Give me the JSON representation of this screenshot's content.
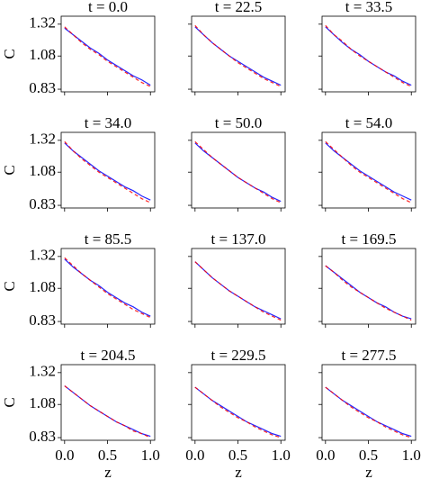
{
  "chart_data": [
    {
      "type": "line",
      "title": "t = 0.0",
      "ylabel": "C",
      "x": [
        0,
        0.1,
        0.2,
        0.3,
        0.4,
        0.5,
        0.6,
        0.7,
        0.8,
        0.9,
        1.0
      ],
      "xlim": [
        -0.04,
        1.05
      ],
      "ylim": [
        0.81,
        1.38
      ],
      "xticks": [
        {
          "value": 0,
          "label": "0.0"
        },
        0.5,
        {
          "value": 1,
          "label": "1.0"
        }
      ],
      "yticks": [
        0.83,
        1.08,
        1.32
      ],
      "series": [
        {
          "color": "#0000ff",
          "dash": false,
          "values": [
            1.29,
            1.24,
            1.19,
            1.14,
            1.1,
            1.05,
            1.01,
            0.97,
            0.93,
            0.9,
            0.86
          ]
        },
        {
          "color": "#ff0000",
          "dash": true,
          "values": [
            1.3,
            1.24,
            1.18,
            1.13,
            1.09,
            1.04,
            1.0,
            0.96,
            0.92,
            0.88,
            0.85
          ]
        }
      ]
    },
    {
      "type": "line",
      "title": "t = 22.5",
      "x": [
        0,
        0.1,
        0.2,
        0.3,
        0.4,
        0.5,
        0.6,
        0.7,
        0.8,
        0.9,
        1.0
      ],
      "xlim": [
        -0.04,
        1.05
      ],
      "ylim": [
        0.81,
        1.38
      ],
      "xticks": [
        {
          "value": 0,
          "label": "0.0"
        },
        0.5,
        {
          "value": 1,
          "label": "1.0"
        }
      ],
      "yticks": [
        0.83,
        1.08,
        1.32
      ],
      "series": [
        {
          "color": "#0000ff",
          "dash": false,
          "values": [
            1.3,
            1.24,
            1.18,
            1.13,
            1.08,
            1.04,
            1.0,
            0.96,
            0.92,
            0.89,
            0.86
          ]
        },
        {
          "color": "#ff0000",
          "dash": true,
          "values": [
            1.31,
            1.24,
            1.18,
            1.13,
            1.08,
            1.03,
            0.99,
            0.95,
            0.91,
            0.88,
            0.85
          ]
        }
      ]
    },
    {
      "type": "line",
      "title": "t = 33.5",
      "x": [
        0,
        0.1,
        0.2,
        0.3,
        0.4,
        0.5,
        0.6,
        0.7,
        0.8,
        0.9,
        1.0
      ],
      "xlim": [
        -0.04,
        1.05
      ],
      "ylim": [
        0.81,
        1.38
      ],
      "xticks": [
        {
          "value": 0,
          "label": "0.0"
        },
        0.5,
        {
          "value": 1,
          "label": "1.0"
        }
      ],
      "yticks": [
        0.83,
        1.08,
        1.32
      ],
      "series": [
        {
          "color": "#0000ff",
          "dash": false,
          "values": [
            1.3,
            1.24,
            1.18,
            1.13,
            1.09,
            1.04,
            1.0,
            0.96,
            0.93,
            0.89,
            0.86
          ]
        },
        {
          "color": "#ff0000",
          "dash": true,
          "values": [
            1.31,
            1.24,
            1.19,
            1.13,
            1.08,
            1.04,
            1.0,
            0.96,
            0.92,
            0.88,
            0.85
          ]
        }
      ]
    },
    {
      "type": "line",
      "title": "t = 34.0",
      "ylabel": "C",
      "x": [
        0,
        0.1,
        0.2,
        0.3,
        0.4,
        0.5,
        0.6,
        0.7,
        0.8,
        0.9,
        1.0
      ],
      "xlim": [
        -0.04,
        1.05
      ],
      "ylim": [
        0.81,
        1.38
      ],
      "xticks": [
        {
          "value": 0,
          "label": "0.0"
        },
        0.5,
        {
          "value": 1,
          "label": "1.0"
        }
      ],
      "yticks": [
        0.83,
        1.08,
        1.32
      ],
      "series": [
        {
          "color": "#0000ff",
          "dash": false,
          "values": [
            1.3,
            1.24,
            1.19,
            1.14,
            1.09,
            1.05,
            1.01,
            0.97,
            0.94,
            0.9,
            0.87
          ]
        },
        {
          "color": "#ff0000",
          "dash": true,
          "values": [
            1.31,
            1.24,
            1.18,
            1.13,
            1.08,
            1.04,
            1.0,
            0.96,
            0.92,
            0.88,
            0.85
          ]
        }
      ]
    },
    {
      "type": "line",
      "title": "t = 50.0",
      "x": [
        0,
        0.1,
        0.2,
        0.3,
        0.4,
        0.5,
        0.6,
        0.7,
        0.8,
        0.9,
        1.0
      ],
      "xlim": [
        -0.04,
        1.05
      ],
      "ylim": [
        0.81,
        1.38
      ],
      "xticks": [
        {
          "value": 0,
          "label": "0.0"
        },
        0.5,
        {
          "value": 1,
          "label": "1.0"
        }
      ],
      "yticks": [
        0.83,
        1.08,
        1.32
      ],
      "series": [
        {
          "color": "#0000ff",
          "dash": false,
          "values": [
            1.3,
            1.24,
            1.19,
            1.14,
            1.09,
            1.04,
            1.0,
            0.96,
            0.93,
            0.89,
            0.86
          ]
        },
        {
          "color": "#ff0000",
          "dash": true,
          "values": [
            1.31,
            1.25,
            1.19,
            1.14,
            1.09,
            1.04,
            1.0,
            0.96,
            0.92,
            0.88,
            0.85
          ]
        }
      ]
    },
    {
      "type": "line",
      "title": "t = 54.0",
      "x": [
        0,
        0.1,
        0.2,
        0.3,
        0.4,
        0.5,
        0.6,
        0.7,
        0.8,
        0.9,
        1.0
      ],
      "xlim": [
        -0.04,
        1.05
      ],
      "ylim": [
        0.81,
        1.38
      ],
      "xticks": [
        {
          "value": 0,
          "label": "0.0"
        },
        0.5,
        {
          "value": 1,
          "label": "1.0"
        }
      ],
      "yticks": [
        0.83,
        1.08,
        1.32
      ],
      "series": [
        {
          "color": "#0000ff",
          "dash": false,
          "values": [
            1.3,
            1.24,
            1.19,
            1.14,
            1.09,
            1.05,
            1.01,
            0.97,
            0.93,
            0.9,
            0.87
          ]
        },
        {
          "color": "#ff0000",
          "dash": true,
          "values": [
            1.31,
            1.25,
            1.19,
            1.13,
            1.08,
            1.04,
            1.0,
            0.96,
            0.92,
            0.88,
            0.85
          ]
        }
      ]
    },
    {
      "type": "line",
      "title": "t = 85.5",
      "ylabel": "C",
      "x": [
        0,
        0.1,
        0.2,
        0.3,
        0.4,
        0.5,
        0.6,
        0.7,
        0.8,
        0.9,
        1.0
      ],
      "xlim": [
        -0.04,
        1.05
      ],
      "ylim": [
        0.81,
        1.38
      ],
      "xticks": [
        {
          "value": 0,
          "label": "0.0"
        },
        0.5,
        {
          "value": 1,
          "label": "1.0"
        }
      ],
      "yticks": [
        0.83,
        1.08,
        1.32
      ],
      "series": [
        {
          "color": "#0000ff",
          "dash": false,
          "values": [
            1.3,
            1.24,
            1.19,
            1.14,
            1.1,
            1.05,
            1.01,
            0.97,
            0.94,
            0.9,
            0.87
          ]
        },
        {
          "color": "#ff0000",
          "dash": true,
          "values": [
            1.31,
            1.25,
            1.19,
            1.14,
            1.09,
            1.04,
            1.0,
            0.96,
            0.92,
            0.89,
            0.86
          ]
        }
      ]
    },
    {
      "type": "line",
      "title": "t = 137.0",
      "x": [
        0,
        0.1,
        0.2,
        0.3,
        0.4,
        0.5,
        0.6,
        0.7,
        0.8,
        0.9,
        1.0
      ],
      "xlim": [
        -0.04,
        1.05
      ],
      "ylim": [
        0.81,
        1.38
      ],
      "xticks": [
        {
          "value": 0,
          "label": "0.0"
        },
        0.5,
        {
          "value": 1,
          "label": "1.0"
        }
      ],
      "yticks": [
        0.83,
        1.08,
        1.32
      ],
      "series": [
        {
          "color": "#0000ff",
          "dash": false,
          "values": [
            1.28,
            1.22,
            1.16,
            1.11,
            1.06,
            1.02,
            0.98,
            0.94,
            0.91,
            0.88,
            0.85
          ]
        },
        {
          "color": "#ff0000",
          "dash": true,
          "values": [
            1.28,
            1.22,
            1.16,
            1.11,
            1.06,
            1.02,
            0.98,
            0.94,
            0.9,
            0.87,
            0.84
          ]
        }
      ]
    },
    {
      "type": "line",
      "title": "t = 169.5",
      "x": [
        0,
        0.1,
        0.2,
        0.3,
        0.4,
        0.5,
        0.6,
        0.7,
        0.8,
        0.9,
        1.0
      ],
      "xlim": [
        -0.04,
        1.05
      ],
      "ylim": [
        0.81,
        1.38
      ],
      "xticks": [
        {
          "value": 0,
          "label": "0.0"
        },
        0.5,
        {
          "value": 1,
          "label": "1.0"
        }
      ],
      "yticks": [
        0.83,
        1.08,
        1.32
      ],
      "series": [
        {
          "color": "#0000ff",
          "dash": false,
          "values": [
            1.25,
            1.2,
            1.15,
            1.1,
            1.05,
            1.01,
            0.97,
            0.94,
            0.9,
            0.87,
            0.85
          ]
        },
        {
          "color": "#ff0000",
          "dash": true,
          "values": [
            1.25,
            1.2,
            1.14,
            1.09,
            1.05,
            1.01,
            0.97,
            0.93,
            0.9,
            0.87,
            0.84
          ]
        }
      ]
    },
    {
      "type": "line",
      "title": "t = 204.5",
      "ylabel": "C",
      "xlabel": "z",
      "x": [
        0,
        0.1,
        0.2,
        0.3,
        0.4,
        0.5,
        0.6,
        0.7,
        0.8,
        0.9,
        1.0
      ],
      "xlim": [
        -0.04,
        1.05
      ],
      "ylim": [
        0.81,
        1.38
      ],
      "xticks": [
        {
          "value": 0,
          "label": "0.0"
        },
        0.5,
        {
          "value": 1,
          "label": "1.0"
        }
      ],
      "yticks": [
        0.83,
        1.08,
        1.32
      ],
      "series": [
        {
          "color": "#0000ff",
          "dash": false,
          "values": [
            1.22,
            1.17,
            1.12,
            1.07,
            1.03,
            0.99,
            0.95,
            0.92,
            0.89,
            0.86,
            0.84
          ]
        },
        {
          "color": "#ff0000",
          "dash": true,
          "values": [
            1.22,
            1.17,
            1.12,
            1.07,
            1.03,
            0.99,
            0.95,
            0.92,
            0.88,
            0.86,
            0.83
          ]
        }
      ]
    },
    {
      "type": "line",
      "title": "t = 229.5",
      "xlabel": "z",
      "x": [
        0,
        0.1,
        0.2,
        0.3,
        0.4,
        0.5,
        0.6,
        0.7,
        0.8,
        0.9,
        1.0
      ],
      "xlim": [
        -0.04,
        1.05
      ],
      "ylim": [
        0.81,
        1.38
      ],
      "xticks": [
        {
          "value": 0,
          "label": "0.0"
        },
        0.5,
        {
          "value": 1,
          "label": "1.0"
        }
      ],
      "yticks": [
        0.83,
        1.08,
        1.32
      ],
      "series": [
        {
          "color": "#0000ff",
          "dash": false,
          "values": [
            1.21,
            1.16,
            1.11,
            1.07,
            1.03,
            0.99,
            0.95,
            0.92,
            0.89,
            0.86,
            0.84
          ]
        },
        {
          "color": "#ff0000",
          "dash": true,
          "values": [
            1.21,
            1.16,
            1.11,
            1.06,
            1.02,
            0.98,
            0.95,
            0.91,
            0.88,
            0.85,
            0.83
          ]
        }
      ]
    },
    {
      "type": "line",
      "title": "t = 277.5",
      "xlabel": "z",
      "x": [
        0,
        0.1,
        0.2,
        0.3,
        0.4,
        0.5,
        0.6,
        0.7,
        0.8,
        0.9,
        1.0
      ],
      "xlim": [
        -0.04,
        1.05
      ],
      "ylim": [
        0.81,
        1.38
      ],
      "xticks": [
        {
          "value": 0,
          "label": "0.0"
        },
        0.5,
        {
          "value": 1,
          "label": "1.0"
        }
      ],
      "yticks": [
        0.83,
        1.08,
        1.32
      ],
      "series": [
        {
          "color": "#0000ff",
          "dash": false,
          "values": [
            1.21,
            1.16,
            1.11,
            1.07,
            1.03,
            0.99,
            0.95,
            0.92,
            0.89,
            0.86,
            0.84
          ]
        },
        {
          "color": "#ff0000",
          "dash": true,
          "values": [
            1.21,
            1.16,
            1.11,
            1.06,
            1.02,
            0.98,
            0.95,
            0.91,
            0.88,
            0.85,
            0.83
          ]
        }
      ]
    }
  ]
}
